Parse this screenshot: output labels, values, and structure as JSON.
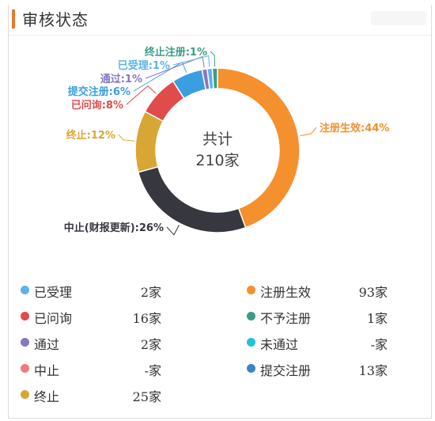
{
  "header": {
    "title": "审核状态"
  },
  "chart_data": {
    "type": "pie",
    "center_line1": "共计",
    "center_line2": "210家",
    "slices": [
      {
        "label": "注册生效:44%",
        "name": "注册生效",
        "percent": 44,
        "color": "#f4902e"
      },
      {
        "label": "中止(财报更新):26%",
        "name": "中止(财报更新)",
        "percent": 26,
        "color": "#37373f"
      },
      {
        "label": "终止:12%",
        "name": "终止",
        "percent": 12,
        "color": "#d8a635"
      },
      {
        "label": "已问询:8%",
        "name": "已问询",
        "percent": 8,
        "color": "#e04b4b"
      },
      {
        "label": "提交注册:6%",
        "name": "提交注册",
        "percent": 6,
        "color": "#3b9ee0"
      },
      {
        "label": "通过:1%",
        "name": "通过",
        "percent": 1,
        "color": "#8976c4"
      },
      {
        "label": "已受理:1%",
        "name": "已受理",
        "percent": 1,
        "color": "#5bb3e6"
      },
      {
        "label": "终止注册:1%",
        "name": "终止注册",
        "percent": 1,
        "color": "#3c9d84"
      }
    ]
  },
  "legend": [
    {
      "label": "已受理",
      "value": "2家",
      "color": "#5bb3e6"
    },
    {
      "label": "注册生效",
      "value": "93家",
      "color": "#f4902e"
    },
    {
      "label": "已问询",
      "value": "16家",
      "color": "#e04b4b"
    },
    {
      "label": "不予注册",
      "value": "1家",
      "color": "#3c9d84"
    },
    {
      "label": "通过",
      "value": "2家",
      "color": "#8976c4"
    },
    {
      "label": "未通过",
      "value": "-家",
      "color": "#1ec3d6"
    },
    {
      "label": "中止",
      "value": "-家",
      "color": "#ef7b7b"
    },
    {
      "label": "提交注册",
      "value": "13家",
      "color": "#3b85c4"
    },
    {
      "label": "终止",
      "value": "25家",
      "color": "#d8a635"
    }
  ]
}
